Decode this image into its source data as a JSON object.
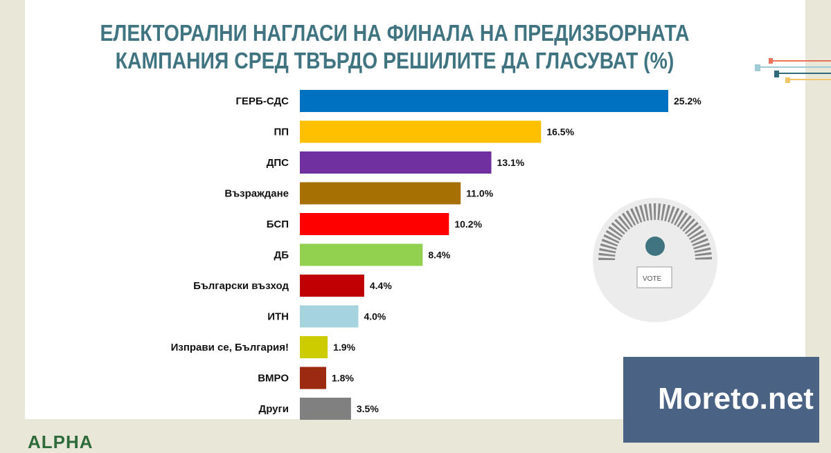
{
  "chart_data": {
    "type": "bar",
    "orientation": "horizontal",
    "title": "ЕЛЕКТОРАЛНИ НАГЛАСИ НА ФИНАЛА НА ПРЕДИЗБОРНАТА КАМПАНИЯ СРЕД ТВЪРДО РЕШИЛИТЕ ДА ГЛАСУВАТ (%)",
    "title_lines": [
      "ЕЛЕКТОРАЛНИ НАГЛАСИ НА ФИНАЛА НА ПРЕДИЗБОРНАТА",
      "КАМПАНИЯ СРЕД ТВЪРДО РЕШИЛИТЕ ДА ГЛАСУВАТ (%)"
    ],
    "categories": [
      "ГЕРБ-СДС",
      "ПП",
      "ДПС",
      "Възраждане",
      "БСП",
      "ДБ",
      "Български възход",
      "ИТН",
      "Изправи се, България!",
      "ВМРО",
      "Други"
    ],
    "values": [
      25.2,
      16.5,
      13.1,
      11.0,
      10.2,
      8.4,
      4.4,
      4.0,
      1.9,
      1.8,
      3.5
    ],
    "labels": [
      "25.2%",
      "16.5%",
      "13.1%",
      "11.0%",
      "10.2%",
      "8.4%",
      "4.4%",
      "4.0%",
      "1.9%",
      "1.8%",
      "3.5%"
    ],
    "colors": [
      "#0070c0",
      "#ffc000",
      "#7030a0",
      "#a67002",
      "#ff0000",
      "#92d050",
      "#c00000",
      "#a5d3de",
      "#cccc00",
      "#9c2a10",
      "#808080"
    ],
    "xlim": [
      0,
      25.2
    ],
    "grid": false,
    "legend": "none"
  },
  "logos": {
    "alpha": "ALPHA",
    "watermark": "Moreto.net",
    "ballot": "VOTE"
  }
}
